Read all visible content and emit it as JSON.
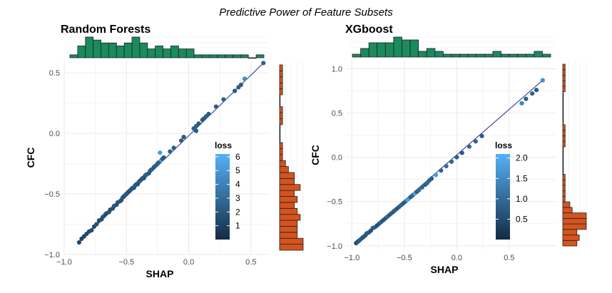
{
  "title": "Predictive Power of Feature Subsets",
  "colors": {
    "grid": "#ebebeb",
    "hist_top": "#1a8a5f",
    "hist_right": "#d4541f",
    "fit_line": "#1f2e8c",
    "loss_low": "#132b43",
    "loss_high": "#56b1f7"
  },
  "chart_data": [
    {
      "type": "scatter",
      "title": "Random Forests",
      "xlabel": "SHAP",
      "ylabel": "CFC",
      "xlim": [
        -1.0,
        0.65
      ],
      "ylim": [
        -1.0,
        0.6
      ],
      "x_ticks": [
        -1.0,
        -0.5,
        0.0,
        0.5
      ],
      "x_tick_labels": [
        "−1.0",
        "−0.5",
        "0.0",
        "0.5"
      ],
      "y_ticks": [
        -1.0,
        -0.5,
        0.0,
        0.5
      ],
      "y_tick_labels": [
        "−1.0",
        "−0.5",
        "0.0",
        "0.5"
      ],
      "legend": {
        "title": "loss",
        "min": 0,
        "max": 6.2,
        "breaks": [
          1,
          2,
          3,
          4,
          5,
          6
        ],
        "break_labels": [
          "1",
          "2",
          "3",
          "4",
          "5",
          "6"
        ]
      },
      "fit_line": {
        "x": [
          -0.88,
          0.6
        ],
        "y": [
          -0.9,
          0.58
        ]
      },
      "points": [
        {
          "x": -0.88,
          "y": -0.9,
          "loss": 1.3
        },
        {
          "x": -0.86,
          "y": -0.87,
          "loss": 1.2
        },
        {
          "x": -0.84,
          "y": -0.85,
          "loss": 1.4
        },
        {
          "x": -0.82,
          "y": -0.83,
          "loss": 1.5
        },
        {
          "x": -0.8,
          "y": -0.81,
          "loss": 1.3
        },
        {
          "x": -0.78,
          "y": -0.8,
          "loss": 1.6
        },
        {
          "x": -0.76,
          "y": -0.77,
          "loss": 1.5
        },
        {
          "x": -0.74,
          "y": -0.75,
          "loss": 1.7
        },
        {
          "x": -0.72,
          "y": -0.72,
          "loss": 1.4
        },
        {
          "x": -0.7,
          "y": -0.71,
          "loss": 1.6
        },
        {
          "x": -0.69,
          "y": -0.69,
          "loss": 1.8
        },
        {
          "x": -0.67,
          "y": -0.67,
          "loss": 1.5
        },
        {
          "x": -0.66,
          "y": -0.66,
          "loss": 1.7
        },
        {
          "x": -0.64,
          "y": -0.65,
          "loss": 1.9
        },
        {
          "x": -0.63,
          "y": -0.63,
          "loss": 1.6
        },
        {
          "x": -0.61,
          "y": -0.62,
          "loss": 1.8
        },
        {
          "x": -0.6,
          "y": -0.6,
          "loss": 2.0
        },
        {
          "x": -0.58,
          "y": -0.59,
          "loss": 1.7
        },
        {
          "x": -0.57,
          "y": -0.57,
          "loss": 1.9
        },
        {
          "x": -0.55,
          "y": -0.56,
          "loss": 2.1
        },
        {
          "x": -0.54,
          "y": -0.55,
          "loss": 1.8
        },
        {
          "x": -0.53,
          "y": -0.53,
          "loss": 2.0
        },
        {
          "x": -0.52,
          "y": -0.52,
          "loss": 1.7
        },
        {
          "x": -0.51,
          "y": -0.51,
          "loss": 2.2
        },
        {
          "x": -0.5,
          "y": -0.5,
          "loss": 1.9
        },
        {
          "x": -0.49,
          "y": -0.49,
          "loss": 2.1
        },
        {
          "x": -0.48,
          "y": -0.48,
          "loss": 1.8
        },
        {
          "x": -0.47,
          "y": -0.47,
          "loss": 2.0
        },
        {
          "x": -0.46,
          "y": -0.46,
          "loss": 2.3
        },
        {
          "x": -0.45,
          "y": -0.45,
          "loss": 1.9
        },
        {
          "x": -0.44,
          "y": -0.45,
          "loss": 2.1
        },
        {
          "x": -0.43,
          "y": -0.43,
          "loss": 2.0
        },
        {
          "x": -0.42,
          "y": -0.42,
          "loss": 2.2
        },
        {
          "x": -0.41,
          "y": -0.42,
          "loss": 1.8
        },
        {
          "x": -0.4,
          "y": -0.4,
          "loss": 2.1
        },
        {
          "x": -0.39,
          "y": -0.39,
          "loss": 2.3
        },
        {
          "x": -0.38,
          "y": -0.38,
          "loss": 2.0
        },
        {
          "x": -0.37,
          "y": -0.37,
          "loss": 2.2
        },
        {
          "x": -0.36,
          "y": -0.37,
          "loss": 1.9
        },
        {
          "x": -0.35,
          "y": -0.35,
          "loss": 2.1
        },
        {
          "x": -0.34,
          "y": -0.34,
          "loss": 2.4
        },
        {
          "x": -0.32,
          "y": -0.33,
          "loss": 2.0
        },
        {
          "x": -0.31,
          "y": -0.31,
          "loss": 2.2
        },
        {
          "x": -0.3,
          "y": -0.3,
          "loss": 2.3
        },
        {
          "x": -0.28,
          "y": -0.28,
          "loss": 2.1
        },
        {
          "x": -0.27,
          "y": -0.27,
          "loss": 2.4
        },
        {
          "x": -0.25,
          "y": -0.25,
          "loss": 2.2
        },
        {
          "x": -0.24,
          "y": -0.24,
          "loss": 2.5
        },
        {
          "x": -0.22,
          "y": -0.22,
          "loss": 5.8
        },
        {
          "x": -0.23,
          "y": -0.16,
          "loss": 5.2
        },
        {
          "x": -0.21,
          "y": -0.21,
          "loss": 2.3
        },
        {
          "x": -0.2,
          "y": -0.2,
          "loss": 2.1
        },
        {
          "x": -0.15,
          "y": -0.15,
          "loss": 2.4
        },
        {
          "x": -0.12,
          "y": -0.12,
          "loss": 2.2
        },
        {
          "x": -0.06,
          "y": -0.06,
          "loss": 2.3
        },
        {
          "x": -0.04,
          "y": -0.03,
          "loss": 2.1
        },
        {
          "x": 0.04,
          "y": 0.04,
          "loss": 2.5
        },
        {
          "x": 0.06,
          "y": 0.02,
          "loss": 2.2
        },
        {
          "x": 0.06,
          "y": 0.06,
          "loss": 2.4
        },
        {
          "x": 0.08,
          "y": 0.08,
          "loss": 2.2
        },
        {
          "x": 0.11,
          "y": 0.11,
          "loss": 2.3
        },
        {
          "x": 0.12,
          "y": 0.12,
          "loss": 2.1
        },
        {
          "x": 0.14,
          "y": 0.14,
          "loss": 2.4
        },
        {
          "x": 0.16,
          "y": 0.16,
          "loss": 2.2
        },
        {
          "x": 0.22,
          "y": 0.22,
          "loss": 2.3
        },
        {
          "x": 0.28,
          "y": 0.28,
          "loss": 2.5
        },
        {
          "x": 0.37,
          "y": 0.35,
          "loss": 2.2
        },
        {
          "x": 0.4,
          "y": 0.38,
          "loss": 2.4
        },
        {
          "x": 0.42,
          "y": 0.4,
          "loss": 2.3
        },
        {
          "x": 0.45,
          "y": 0.45,
          "loss": 4.4
        },
        {
          "x": 0.6,
          "y": 0.58,
          "loss": 2.6
        }
      ],
      "hist_x": [
        1,
        4,
        7,
        6,
        5,
        5,
        4,
        5,
        7,
        5,
        3,
        4,
        3,
        4,
        3,
        3,
        1,
        1,
        1,
        1,
        1,
        1,
        1,
        0,
        1
      ],
      "hist_y": [
        8,
        8,
        6,
        6,
        6,
        7,
        6,
        5,
        6,
        5,
        7,
        5,
        5,
        3,
        2,
        1,
        1,
        1,
        0,
        0,
        0,
        1,
        1,
        1,
        0,
        0,
        1,
        1,
        1,
        1,
        1
      ]
    },
    {
      "type": "scatter",
      "title": "XGboost",
      "xlabel": "SHAP",
      "ylabel": "CFC",
      "xlim": [
        -1.05,
        0.95
      ],
      "ylim": [
        -1.05,
        1.1
      ],
      "x_ticks": [
        -1.0,
        -0.5,
        0.0,
        0.5
      ],
      "x_tick_labels": [
        "−1.0",
        "−0.5",
        "0.0",
        "0.5"
      ],
      "y_ticks": [
        -1.0,
        -0.5,
        0.0,
        0.5,
        1.0
      ],
      "y_tick_labels": [
        "−1.0",
        "−0.5",
        "0.0",
        "0.5",
        "1.0"
      ],
      "legend": {
        "title": "loss",
        "min": 0,
        "max": 2.1,
        "breaks": [
          0.5,
          1.0,
          1.5,
          2.0
        ],
        "break_labels": [
          "0.5",
          "1.0",
          "1.5",
          "2.0"
        ]
      },
      "fit_line": {
        "x": [
          -0.96,
          0.82
        ],
        "y": [
          -0.96,
          0.87
        ]
      },
      "points": [
        {
          "x": -0.96,
          "y": -0.97,
          "loss": 0.6
        },
        {
          "x": -0.95,
          "y": -0.96,
          "loss": 0.5
        },
        {
          "x": -0.94,
          "y": -0.95,
          "loss": 0.7
        },
        {
          "x": -0.93,
          "y": -0.94,
          "loss": 0.6
        },
        {
          "x": -0.92,
          "y": -0.93,
          "loss": 0.8
        },
        {
          "x": -0.9,
          "y": -0.91,
          "loss": 0.6
        },
        {
          "x": -0.89,
          "y": -0.9,
          "loss": 0.7
        },
        {
          "x": -0.87,
          "y": -0.88,
          "loss": 0.6
        },
        {
          "x": -0.86,
          "y": -0.86,
          "loss": 0.8
        },
        {
          "x": -0.84,
          "y": -0.85,
          "loss": 0.7
        },
        {
          "x": -0.82,
          "y": -0.83,
          "loss": 0.6
        },
        {
          "x": -0.8,
          "y": -0.8,
          "loss": 0.7
        },
        {
          "x": -0.78,
          "y": -0.79,
          "loss": 0.8
        },
        {
          "x": -0.76,
          "y": -0.77,
          "loss": 0.6
        },
        {
          "x": -0.74,
          "y": -0.75,
          "loss": 0.7
        },
        {
          "x": -0.72,
          "y": -0.73,
          "loss": 0.8
        },
        {
          "x": -0.7,
          "y": -0.71,
          "loss": 0.6
        },
        {
          "x": -0.68,
          "y": -0.69,
          "loss": 0.7
        },
        {
          "x": -0.66,
          "y": -0.67,
          "loss": 0.9
        },
        {
          "x": -0.64,
          "y": -0.65,
          "loss": 0.7
        },
        {
          "x": -0.62,
          "y": -0.63,
          "loss": 0.8
        },
        {
          "x": -0.6,
          "y": -0.61,
          "loss": 0.6
        },
        {
          "x": -0.59,
          "y": -0.6,
          "loss": 0.9
        },
        {
          "x": -0.57,
          "y": -0.58,
          "loss": 0.7
        },
        {
          "x": -0.55,
          "y": -0.56,
          "loss": 0.8
        },
        {
          "x": -0.53,
          "y": -0.54,
          "loss": 0.9
        },
        {
          "x": -0.51,
          "y": -0.52,
          "loss": 0.7
        },
        {
          "x": -0.49,
          "y": -0.5,
          "loss": 0.8
        },
        {
          "x": -0.47,
          "y": -0.48,
          "loss": 1.9
        },
        {
          "x": -0.46,
          "y": -0.47,
          "loss": 1.7
        },
        {
          "x": -0.44,
          "y": -0.45,
          "loss": 0.8
        },
        {
          "x": -0.42,
          "y": -0.43,
          "loss": 0.9
        },
        {
          "x": -0.4,
          "y": -0.41,
          "loss": 1.8
        },
        {
          "x": -0.38,
          "y": -0.39,
          "loss": 0.8
        },
        {
          "x": -0.36,
          "y": -0.37,
          "loss": 1.0
        },
        {
          "x": -0.33,
          "y": -0.34,
          "loss": 0.9
        },
        {
          "x": -0.3,
          "y": -0.31,
          "loss": 0.8
        },
        {
          "x": -0.28,
          "y": -0.29,
          "loss": 1.0
        },
        {
          "x": -0.26,
          "y": -0.26,
          "loss": 0.9
        },
        {
          "x": -0.24,
          "y": -0.24,
          "loss": 0.8
        },
        {
          "x": -0.2,
          "y": -0.2,
          "loss": 1.7
        },
        {
          "x": -0.15,
          "y": -0.15,
          "loss": 0.9
        },
        {
          "x": -0.1,
          "y": -0.1,
          "loss": 1.0
        },
        {
          "x": -0.05,
          "y": -0.05,
          "loss": 0.9
        },
        {
          "x": 0.0,
          "y": 0.0,
          "loss": 0.8
        },
        {
          "x": 0.05,
          "y": 0.05,
          "loss": 0.7
        },
        {
          "x": 0.12,
          "y": 0.12,
          "loss": 1.0
        },
        {
          "x": 0.18,
          "y": 0.18,
          "loss": 0.9
        },
        {
          "x": 0.24,
          "y": 0.24,
          "loss": 0.8
        },
        {
          "x": 0.62,
          "y": 0.61,
          "loss": 1.4
        },
        {
          "x": 0.66,
          "y": 0.66,
          "loss": 0.8
        },
        {
          "x": 0.72,
          "y": 0.72,
          "loss": 0.9
        },
        {
          "x": 0.76,
          "y": 0.76,
          "loss": 0.7
        },
        {
          "x": 0.82,
          "y": 0.87,
          "loss": 1.6
        }
      ],
      "hist_x": [
        1,
        3,
        5,
        5,
        5,
        7,
        6,
        6,
        2,
        3,
        2,
        1,
        1,
        1,
        1,
        1,
        1,
        2,
        1,
        1,
        1,
        1,
        2,
        1
      ],
      "hist_y": [
        6,
        7,
        6,
        10,
        10,
        10,
        4,
        3,
        1,
        1,
        1,
        1,
        1,
        0,
        0,
        0,
        0,
        0,
        1,
        1,
        1,
        1,
        0,
        0,
        0,
        0,
        0,
        0,
        1,
        1,
        1,
        1,
        1
      ]
    }
  ]
}
